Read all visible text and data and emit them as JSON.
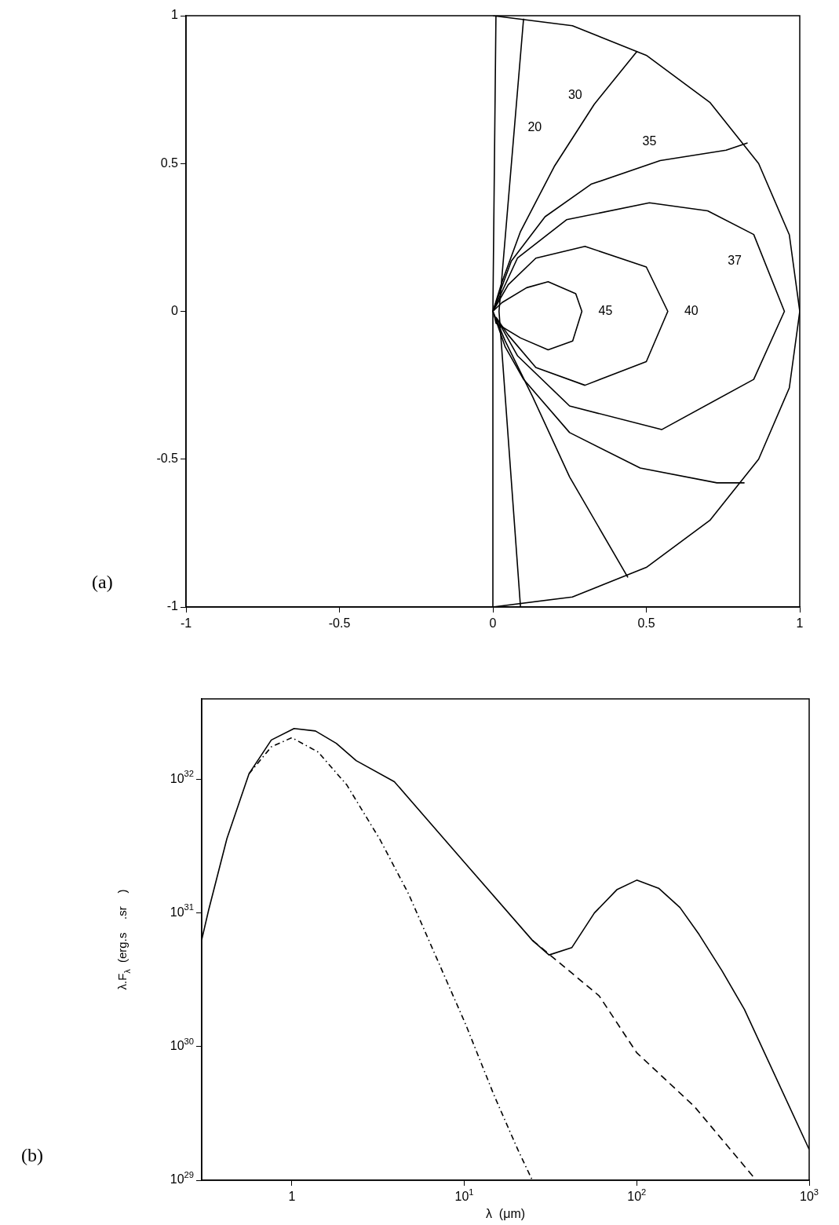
{
  "chart_data": [
    {
      "type": "line",
      "xlim": [
        -1,
        1
      ],
      "ylim": [
        -1,
        1
      ],
      "xticks": [
        -1,
        -0.5,
        0,
        0.5,
        1
      ],
      "yticks": [
        -1,
        -0.5,
        0,
        0.5,
        1
      ],
      "grid": false,
      "legend": false,
      "marker": "none",
      "line_style": "solid",
      "annotations": [
        "(a)",
        {
          "text": "20",
          "x": 0.07,
          "y": 0.62
        },
        {
          "text": "30",
          "x": 0.35,
          "y": 0.73
        },
        {
          "text": "35",
          "x": 0.51,
          "y": 0.505
        },
        {
          "text": "37",
          "x": 0.885,
          "y": 0.17
        },
        {
          "text": "45",
          "x": 0.29,
          "y": 0
        },
        {
          "text": "40",
          "x": 0.57,
          "y": 0
        }
      ],
      "series": [
        {
          "color": "#000000",
          "x": [
            0,
            0.259,
            0.5,
            0.707,
            0.866,
            0.966,
            1,
            0.966,
            0.866,
            0.707,
            0.5,
            0.259,
            0
          ],
          "values": [
            1,
            0.966,
            0.866,
            0.707,
            0.5,
            0.259,
            0,
            -0.259,
            -0.5,
            -0.707,
            -0.866,
            -0.966,
            -1
          ]
        },
        {
          "color": "#000000",
          "x": [
            0.01,
            0,
            0
          ],
          "values": [
            1,
            0,
            -1
          ]
        },
        {
          "color": "#000000",
          "x": [
            0.1,
            0.02,
            0.09
          ],
          "values": [
            0.99,
            0,
            -1
          ]
        },
        {
          "color": "#000000",
          "x": [
            0.47,
            0.33,
            0.2,
            0.09,
            0.03,
            0,
            0.04,
            0.13,
            0.25,
            0.44
          ],
          "values": [
            0.88,
            0.7,
            0.49,
            0.27,
            0.1,
            0,
            -0.1,
            -0.29,
            -0.56,
            -0.9
          ]
        },
        {
          "color": "#000000",
          "x": [
            0.83,
            0.76,
            0.545,
            0.32,
            0.17,
            0.06,
            0,
            0.04,
            0.1,
            0.25,
            0.48,
            0.73,
            0.82
          ],
          "values": [
            0.57,
            0.545,
            0.51,
            0.43,
            0.32,
            0.17,
            0,
            -0.12,
            -0.23,
            -0.41,
            -0.53,
            -0.58,
            -0.58
          ]
        },
        {
          "color": "#000000",
          "x": [
            0,
            0.08,
            0.24,
            0.51,
            0.7,
            0.85,
            0.95,
            0.85,
            0.55,
            0.25,
            0.08,
            0.01
          ],
          "values": [
            0,
            0.18,
            0.31,
            0.367,
            0.34,
            0.26,
            0,
            -0.23,
            -0.4,
            -0.32,
            -0.15,
            -0.02
          ]
        },
        {
          "color": "#000000",
          "x": [
            0,
            0.05,
            0.14,
            0.3,
            0.5,
            0.57,
            0.5,
            0.3,
            0.14,
            0.05,
            0.01
          ],
          "values": [
            0,
            0.09,
            0.18,
            0.22,
            0.15,
            0,
            -0.17,
            -0.25,
            -0.19,
            -0.08,
            -0.02
          ]
        },
        {
          "color": "#000000",
          "x": [
            0,
            0.03,
            0.11,
            0.18,
            0.27,
            0.29,
            0.26,
            0.18,
            0.09,
            0.01,
            0.005
          ],
          "values": [
            0,
            0.03,
            0.08,
            0.1,
            0.06,
            0,
            -0.1,
            -0.13,
            -0.09,
            -0.04,
            -0.015
          ]
        }
      ]
    },
    {
      "type": "line",
      "log": "xy",
      "xlim": [
        0.3,
        1000
      ],
      "ylim": [
        1e+29,
        4e+32
      ],
      "grid": false,
      "legend": false,
      "marker": "none",
      "xticks": [
        {
          "value": 1,
          "label": "1"
        },
        {
          "value": 10,
          "label": "10$^{1}$"
        },
        {
          "value": 100,
          "label": "10$^{2}$"
        },
        {
          "value": 1000,
          "label": "10$^{3}$"
        }
      ],
      "yticks": [
        {
          "value": 1e+29,
          "label": "10$^{29}$"
        },
        {
          "value": 1e+30,
          "label": "10$^{30}$"
        },
        {
          "value": 1e+31,
          "label": "10$^{31}$"
        },
        {
          "value": 1e+32,
          "label": "10$^{32}$"
        }
      ],
      "xlabel": "λ  (μm)",
      "ylabel": "λ.F$_{λ}$  (erg.s    .sr    )",
      "annotations": [
        "(b)"
      ],
      "series": [
        {
          "color": "#000000",
          "line_style": "solid",
          "x": [
            0.3,
            0.329,
            0.42,
            0.564,
            0.76,
            1.03,
            1.37,
            1.81,
            2.36,
            3.93,
            10,
            24.8,
            31,
            42,
            56.8,
            77,
            100,
            134,
            178,
            230,
            312,
            421,
            1000
          ],
          "values": [
            6.3e+30,
            1.05e+31,
            3.6e+31,
            1.1e+32,
            1.97e+32,
            2.4e+32,
            2.3e+32,
            1.86e+32,
            1.38e+32,
            9.6e+31,
            2.4e+31,
            6.25e+30,
            4.85e+30,
            5.5e+30,
            1e+31,
            1.5e+31,
            1.76e+31,
            1.53e+31,
            1.1e+31,
            6.9e+30,
            3.7e+30,
            1.9e+30,
            1.7e+29
          ]
        },
        {
          "color": "#000000",
          "line_style": "dashed",
          "x": [
            24.8,
            60.5,
            100,
            216,
            493
          ],
          "values": [
            6.25e+30,
            2.4e+30,
            9e+29,
            3.56e+29,
            1e+29
          ]
        },
        {
          "color": "#000000",
          "line_style": "dotted",
          "x": [
            0.564,
            0.76,
            1,
            1.42,
            2.08,
            3.24,
            4.75,
            6.96,
            10.2,
            14.9,
            20.5,
            24.8
          ],
          "values": [
            1.1e+32,
            1.75e+32,
            2.05e+32,
            1.6e+32,
            9.1e+31,
            3.55e+31,
            1.39e+31,
            4.5e+30,
            1.46e+30,
            4.3e+29,
            1.68e+29,
            1e+29
          ]
        }
      ]
    }
  ]
}
